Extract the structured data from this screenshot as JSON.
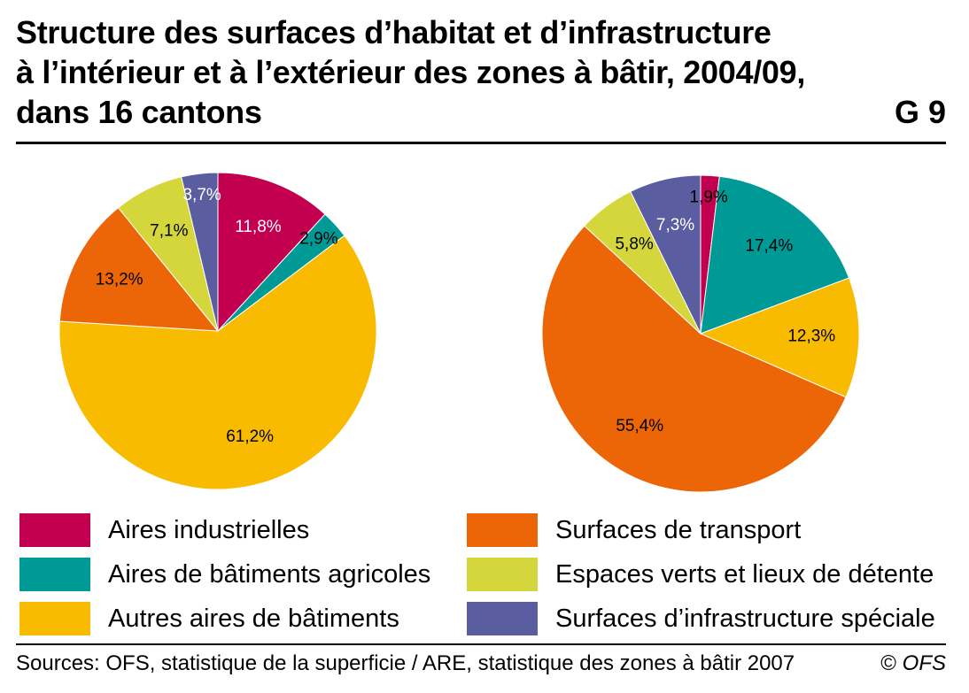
{
  "header": {
    "title_lines": [
      "Structure des surfaces d’habitat et d’infrastructure",
      "à l’intérieur et à l’extérieur des zones à bâtir, 2004/09,",
      "dans 16 cantons"
    ],
    "figure_number": "G 9"
  },
  "legend": {
    "items": [
      {
        "label": "Aires industrielles",
        "color": "#c3004f"
      },
      {
        "label": "Aires de bâtiments agricoles",
        "color": "#009a96"
      },
      {
        "label": "Autres aires de bâtiments",
        "color": "#f9bb00"
      },
      {
        "label": "Surfaces de transport",
        "color": "#ec6608"
      },
      {
        "label": "Espaces verts et lieux de détente",
        "color": "#d4d63b"
      },
      {
        "label": "Surfaces d’infrastructure spéciale",
        "color": "#5a5da0"
      }
    ]
  },
  "chart_data": [
    {
      "type": "pie",
      "categories": [
        "Aires industrielles",
        "Aires de bâtiments agricoles",
        "Autres aires de bâtiments",
        "Surfaces de transport",
        "Espaces verts et lieux de détente",
        "Surfaces d’infrastructure spéciale"
      ],
      "values": [
        11.8,
        2.9,
        61.2,
        13.2,
        7.1,
        3.7
      ],
      "labels": [
        "11,8%",
        "2,9%",
        "61,2%",
        "13,2%",
        "7,1%",
        "3,7%"
      ],
      "colors": [
        "#c3004f",
        "#009a96",
        "#f9bb00",
        "#ec6608",
        "#d4d63b",
        "#5a5da0"
      ],
      "label_colors": [
        "#ffffff",
        "#000000",
        "#000000",
        "#000000",
        "#000000",
        "#ffffff"
      ],
      "start": "12 o'clock",
      "direction": "clockwise"
    },
    {
      "type": "pie",
      "categories": [
        "Aires industrielles",
        "Aires de bâtiments agricoles",
        "Autres aires de bâtiments",
        "Surfaces de transport",
        "Espaces verts et lieux de détente",
        "Surfaces d’infrastructure spéciale"
      ],
      "values": [
        1.9,
        17.4,
        12.3,
        55.4,
        5.8,
        7.3
      ],
      "labels": [
        "1,9%",
        "17,4%",
        "12,3%",
        "55,4%",
        "5,8%",
        "7,3%"
      ],
      "colors": [
        "#c3004f",
        "#009a96",
        "#f9bb00",
        "#ec6608",
        "#d4d63b",
        "#5a5da0"
      ],
      "label_colors": [
        "#000000",
        "#000000",
        "#000000",
        "#000000",
        "#000000",
        "#ffffff"
      ],
      "start": "12 o'clock",
      "direction": "clockwise"
    }
  ],
  "footer": {
    "source": "Sources: OFS, statistique de la superficie / ARE, statistique des zones à bâtir 2007",
    "copyright_symbol": "©",
    "copyright_org": "OFS"
  }
}
